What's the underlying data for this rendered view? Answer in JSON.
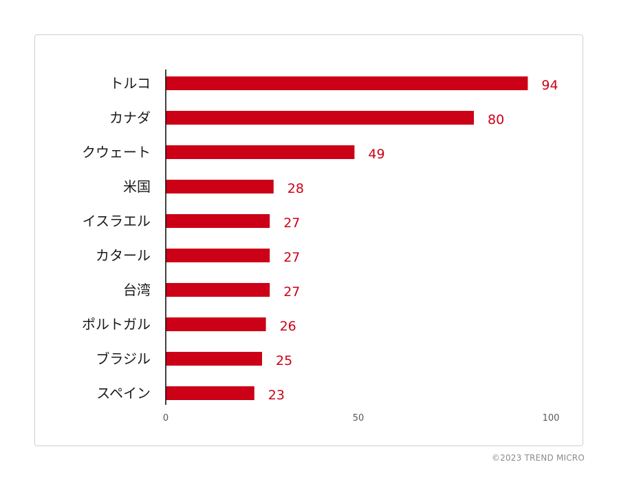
{
  "chart_data": {
    "type": "bar",
    "orientation": "horizontal",
    "categories": [
      "トルコ",
      "カナダ",
      "クウェート",
      "米国",
      "イスラエル",
      "カタール",
      "台湾",
      "ポルトガル",
      "ブラジル",
      "スペイン"
    ],
    "values": [
      94,
      80,
      49,
      28,
      27,
      27,
      27,
      26,
      25,
      23
    ],
    "xlim": [
      0,
      100
    ],
    "xticks": [
      0,
      50,
      100
    ],
    "grid": false,
    "legend": "none",
    "bar_color": "#cc0016",
    "value_label_color": "#cc0016",
    "axis_color": "#111111"
  },
  "footer": {
    "copyright": "©2023 TREND MICRO"
  }
}
